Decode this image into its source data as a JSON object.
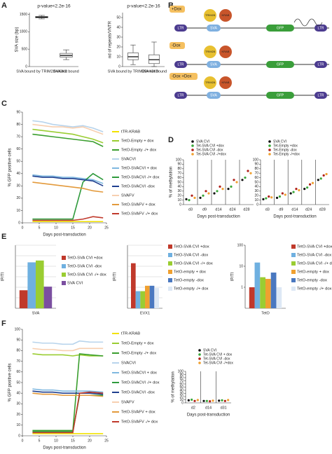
{
  "panel_labels": [
    "A",
    "B",
    "C",
    "D",
    "E",
    "F"
  ],
  "diagram": {
    "conditions": [
      "+Dox",
      "-Dox",
      "-Dox +Dox"
    ],
    "elements": [
      "LTR",
      "SVA",
      "GFP",
      "LTR"
    ],
    "proteins": [
      "TRIM28",
      "KRAB"
    ]
  },
  "chart_data": [
    {
      "type": "boxplot",
      "title": "p-value<2.2e-16",
      "ylabel": "SVA size (bp)",
      "categories": [
        "SVA bound by TRIM28+H3K9",
        "SVA not bound"
      ],
      "boxes": [
        {
          "whislo": 1370,
          "q1": 1400,
          "med": 1420,
          "q3": 1440,
          "whishi": 1470
        },
        {
          "whislo": 200,
          "q1": 270,
          "med": 320,
          "q3": 380,
          "whishi": 480
        }
      ],
      "ylim": [
        0,
        1550
      ],
      "yticks": [
        0,
        500,
        1000,
        1500
      ],
      "color": "#ffffff"
    },
    {
      "type": "boxplot",
      "title": "p-value<2.2e-16",
      "ylabel": "nd of repeats/VNTR",
      "categories": [
        "SVA bound by TRIM28+H3K9",
        "SVA not bound"
      ],
      "boxes": [
        {
          "whislo": 2,
          "q1": 7,
          "med": 10,
          "q3": 14,
          "whishi": 22
        },
        {
          "whislo": 0,
          "q1": 3,
          "med": 7,
          "q3": 12,
          "whishi": 25
        }
      ],
      "ylim": [
        0,
        55
      ],
      "yticks": [
        0,
        10,
        20,
        30,
        40,
        50
      ],
      "color": "#ffffff"
    },
    {
      "type": "line",
      "ylabel": "% GFP positive cells",
      "xlabel": "Days post-transduction",
      "x": [
        3,
        6,
        9,
        12,
        15,
        18,
        21,
        24
      ],
      "xlim": [
        0,
        25
      ],
      "xticks": [
        0,
        5,
        10,
        15,
        20,
        25
      ],
      "ylim": [
        0,
        90
      ],
      "yticks": [
        0,
        10,
        20,
        30,
        40,
        50,
        60,
        70,
        80,
        90
      ],
      "series": [
        {
          "name": "tTR-KRAB",
          "color": "#f2e200",
          "values": [
            1,
            1,
            1,
            1,
            1,
            1,
            1,
            1
          ]
        },
        {
          "name": "TetO-Empty + dox",
          "color": "#9acd32",
          "values": [
            76,
            75,
            74,
            73,
            72,
            70,
            68,
            65
          ]
        },
        {
          "name": "TetO-Empty -/+ dox",
          "color": "#3a9e2e",
          "values": [
            72,
            71,
            70,
            69,
            68,
            67,
            66,
            62
          ]
        },
        {
          "name": "SVACVI",
          "color": "#b8d4ec",
          "values": [
            83,
            82,
            80,
            79,
            78,
            79,
            77,
            74
          ]
        },
        {
          "name": "TetO-SVACVI + dox",
          "color": "#7fb8e0",
          "values": [
            39,
            38,
            38,
            37,
            37,
            36,
            35,
            32
          ]
        },
        {
          "name": "TetO-SVACVI -/+ dox",
          "color": "#2e9a3c",
          "values": [
            3,
            3,
            3,
            3,
            3,
            33,
            40,
            35
          ]
        },
        {
          "name": "TetO-SVACVI -dox",
          "color": "#1f3f8f",
          "values": [
            38,
            37,
            37,
            36,
            36,
            35,
            34,
            30
          ]
        },
        {
          "name": "SVAFV",
          "color": "#f7cfb0",
          "values": [
            80,
            79,
            78,
            78,
            77,
            78,
            75,
            72
          ]
        },
        {
          "name": "TetO-SVAFV + dox",
          "color": "#e39a3c",
          "values": [
            33,
            32,
            31,
            30,
            29,
            28,
            26,
            25
          ]
        },
        {
          "name": "TetO-SVAFV -/+ dox",
          "color": "#c0392b",
          "values": [
            2,
            2,
            2,
            2,
            2,
            3,
            5,
            4
          ]
        }
      ]
    },
    {
      "type": "dot",
      "ylabel": "% of methylation",
      "xlabel": "Days post-transduction",
      "categories": [
        "d3",
        "d9",
        "d14",
        "d24",
        "d28"
      ],
      "ylim": [
        0,
        100
      ],
      "yticks": [
        0,
        10,
        20,
        30,
        40,
        50,
        60,
        70,
        80,
        90,
        100
      ],
      "series": [
        {
          "name": "SVA CVI",
          "color": "#111111",
          "values": [
            12,
            15,
            25,
            35,
            55
          ]
        },
        {
          "name": "Tet-SVA CVI +dox",
          "color": "#3aa83a",
          "values": [
            10,
            20,
            30,
            40,
            60
          ]
        },
        {
          "name": "Tet-SVA CVI -dox",
          "color": "#b0201a",
          "values": [
            20,
            30,
            40,
            55,
            75
          ]
        },
        {
          "name": "Tet-SVA CVI -/+dox",
          "color": "#f0a030",
          "values": [
            15,
            25,
            35,
            50,
            70
          ]
        }
      ]
    },
    {
      "type": "dot",
      "xlabel": "Days post-transduction",
      "categories": [
        "d3",
        "d9",
        "d14",
        "d24",
        "d28"
      ],
      "ylim": [
        0,
        100
      ],
      "yticks": [
        0,
        10,
        20,
        30,
        40,
        50,
        60,
        70,
        80,
        90,
        100
      ],
      "series": [
        {
          "name": "SVA CVI",
          "color": "#111111",
          "values": [
            12,
            15,
            25,
            35,
            55
          ]
        },
        {
          "name": "Tet-Empty +dox",
          "color": "#3aa83a",
          "values": [
            14,
            18,
            28,
            38,
            58
          ]
        },
        {
          "name": "Tet-Empty -dox",
          "color": "#b0201a",
          "values": [
            18,
            25,
            35,
            45,
            65
          ]
        },
        {
          "name": "Tet-Empty -/+dox",
          "color": "#f0a030",
          "values": [
            16,
            22,
            32,
            48,
            68
          ]
        }
      ]
    },
    {
      "type": "bar",
      "ylabel": "IP/TI",
      "categories": [
        "SVA"
      ],
      "ylim": [
        0,
        3.5
      ],
      "grid": true,
      "series": [
        {
          "name": "TetO-SVA CVI +dox",
          "color": "#c0392b",
          "values": [
            1.0
          ]
        },
        {
          "name": "TetO-SVA CVI -dox",
          "color": "#6fb0e0",
          "values": [
            2.55
          ]
        },
        {
          "name": "TetO-SVA CVI -/+ dox",
          "color": "#9acd32",
          "values": [
            2.65
          ]
        },
        {
          "name": "SVA CVI",
          "color": "#7b4fa0",
          "values": [
            1.2
          ]
        }
      ]
    },
    {
      "type": "bar",
      "ylabel": "IP/TI",
      "categories": [
        "EVX1"
      ],
      "ylim": [
        0,
        1.4
      ],
      "grid": true,
      "series": [
        {
          "name": "TetO-SVA CVI +dox",
          "color": "#c0392b",
          "values": [
            1.0
          ]
        },
        {
          "name": "TetO-SVA CVI -dox",
          "color": "#6fb0e0",
          "values": [
            0.38
          ]
        },
        {
          "name": "TetO-SVA CVI -/+ dox",
          "color": "#9acd32",
          "values": [
            0.38
          ]
        },
        {
          "name": "TetO-empty + dox",
          "color": "#f0a030",
          "values": [
            0.5
          ]
        },
        {
          "name": "TetO-empty -dox",
          "color": "#4a78c0",
          "values": [
            0.5
          ]
        },
        {
          "name": "TetO-empty -/+ dox",
          "color": "#dde8f5",
          "values": [
            0.45
          ]
        }
      ]
    },
    {
      "type": "bar",
      "ylabel": "IP/TI",
      "categories": [
        "TetO"
      ],
      "log_scale": true,
      "ylim": [
        0.1,
        100
      ],
      "yticks": [
        1,
        10,
        100
      ],
      "grid": true,
      "series": [
        {
          "name": "TetO-SVA CVI +dox",
          "color": "#c0392b",
          "values": [
            1
          ]
        },
        {
          "name": "TetO-SVA CVI -dox",
          "color": "#6fb0e0",
          "values": [
            15
          ]
        },
        {
          "name": "TetO-SVA CVI -/+ dox",
          "color": "#9acd32",
          "values": [
            3
          ]
        },
        {
          "name": "TetO-empty + dox",
          "color": "#f0a030",
          "values": [
            2.5
          ]
        },
        {
          "name": "TetO-empty -dox",
          "color": "#4a78c0",
          "values": [
            5
          ]
        },
        {
          "name": "TetO-empty -/+ dox",
          "color": "#dde8f5",
          "values": [
            1
          ]
        }
      ]
    },
    {
      "type": "line",
      "ylabel": "% GFP positive cells",
      "xlabel": "Days post-transduction",
      "x": [
        3,
        6,
        9,
        12,
        15,
        17,
        20,
        24
      ],
      "xlim": [
        0,
        25
      ],
      "xticks": [
        0,
        5,
        10,
        15,
        20,
        25
      ],
      "ylim": [
        0,
        100
      ],
      "yticks": [
        0,
        10,
        20,
        30,
        40,
        50,
        60,
        70,
        80,
        90,
        100
      ],
      "series": [
        {
          "name": "tTR-KRAB",
          "color": "#f2e200",
          "values": [
            2,
            2,
            2,
            2,
            2,
            2,
            2,
            2
          ]
        },
        {
          "name": "TetO-Empty + dox",
          "color": "#9acd32",
          "values": [
            77,
            76,
            76,
            76,
            75,
            76,
            75,
            75
          ]
        },
        {
          "name": "TetO-Empty -/+ dox",
          "color": "#3a9e2e",
          "values": [
            5,
            5,
            5,
            5,
            5,
            77,
            76,
            75
          ]
        },
        {
          "name": "SVACVI",
          "color": "#b8d4ec",
          "values": [
            88,
            87,
            87,
            86,
            86,
            89,
            88,
            88
          ]
        },
        {
          "name": "TetO-SVACVI + dox",
          "color": "#7fb8e0",
          "values": [
            44,
            43,
            43,
            42,
            42,
            42,
            42,
            41
          ]
        },
        {
          "name": "TetO-SVACVI -/+ dox",
          "color": "#2e9a3c",
          "values": [
            4,
            4,
            4,
            4,
            4,
            38,
            38,
            38
          ]
        },
        {
          "name": "TetO-SVACVI -dox",
          "color": "#1f3f8f",
          "values": [
            42,
            41,
            41,
            40,
            40,
            40,
            40,
            39
          ]
        },
        {
          "name": "SVAFV",
          "color": "#f7cfb0",
          "values": [
            82,
            81,
            81,
            80,
            80,
            82,
            82,
            82
          ]
        },
        {
          "name": "TetO-SVAFV + dox",
          "color": "#e39a3c",
          "values": [
            40,
            39,
            39,
            38,
            38,
            38,
            38,
            37
          ]
        },
        {
          "name": "TetO-SVAFV -/+ dox",
          "color": "#c0392b",
          "values": [
            3,
            3,
            3,
            3,
            3,
            40,
            41,
            40
          ]
        }
      ]
    },
    {
      "type": "dot",
      "ylabel": "% of methylation",
      "xlabel": "Days post-transduction",
      "categories": [
        "d2",
        "d14",
        "d31"
      ],
      "ylim": [
        0,
        100
      ],
      "yticks": [
        0,
        10,
        20,
        30,
        40,
        50,
        60,
        70,
        80,
        90,
        100
      ],
      "series": [
        {
          "name": "SVA CVI",
          "color": "#111111",
          "values": [
            8,
            6,
            7
          ]
        },
        {
          "name": "Tet-SVA CVI + dox",
          "color": "#3aa83a",
          "values": [
            10,
            6,
            8
          ]
        },
        {
          "name": "Tet-SVA CVI -dox",
          "color": "#b0201a",
          "values": [
            6,
            5,
            6
          ]
        },
        {
          "name": "Tet-SVA CVI -/+dox",
          "color": "#f0a030",
          "values": [
            9,
            7,
            9
          ]
        }
      ]
    }
  ]
}
